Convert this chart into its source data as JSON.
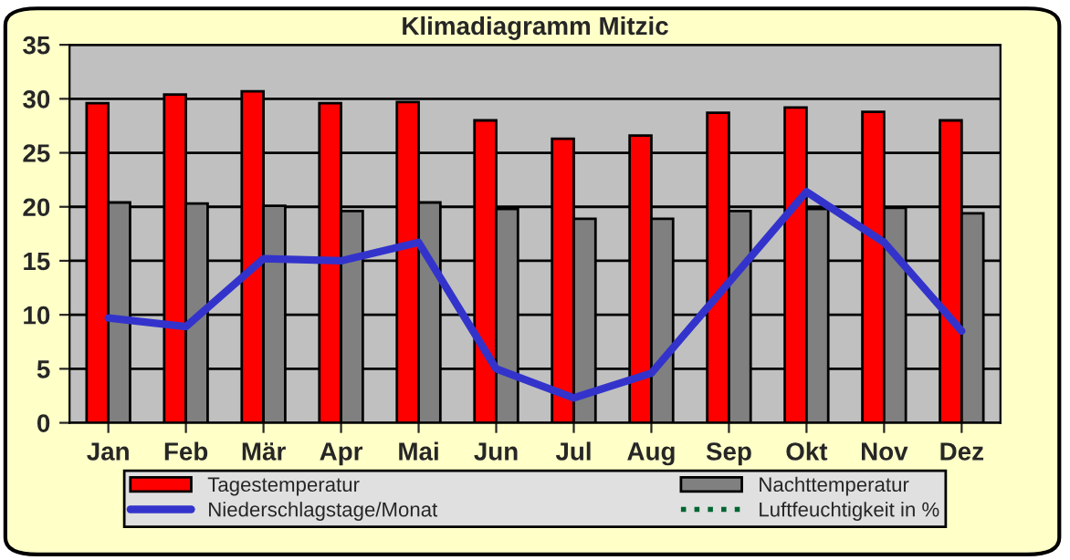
{
  "chart_data": {
    "type": "bar",
    "title": "Klimadiagramm Mitzic",
    "categories": [
      "Jan",
      "Feb",
      "Mär",
      "Apr",
      "Mai",
      "Jun",
      "Jul",
      "Aug",
      "Sep",
      "Okt",
      "Nov",
      "Dez"
    ],
    "series": [
      {
        "name": "Tagestemperatur",
        "color": "#ff0000",
        "values": [
          29.6,
          30.4,
          30.7,
          29.6,
          29.7,
          28.0,
          26.3,
          26.6,
          28.7,
          29.2,
          28.8,
          28.0
        ]
      },
      {
        "name": "Nachttemperatur",
        "color": "#808080",
        "values": [
          20.4,
          20.3,
          20.1,
          19.6,
          20.4,
          19.8,
          18.9,
          18.9,
          19.6,
          19.8,
          19.9,
          19.4
        ]
      },
      {
        "name": "Niederschlagstage/Monat",
        "type": "line",
        "color": "#3333cc",
        "line_style": "solid",
        "values": [
          9.7,
          8.9,
          15.2,
          15.0,
          16.7,
          5.0,
          2.3,
          4.6,
          13.0,
          21.4,
          16.7,
          8.5
        ]
      },
      {
        "name": "Luftfeuchtigkeit in %",
        "type": "line",
        "color": "#006633",
        "line_style": "dotted",
        "values": [
          null,
          null,
          null,
          null,
          null,
          null,
          null,
          null,
          null,
          null,
          null,
          null
        ]
      }
    ],
    "ylim": [
      0,
      35
    ],
    "yticks": [
      0,
      5,
      10,
      15,
      20,
      25,
      30,
      35
    ],
    "grid": "y",
    "legend": "bottom"
  }
}
